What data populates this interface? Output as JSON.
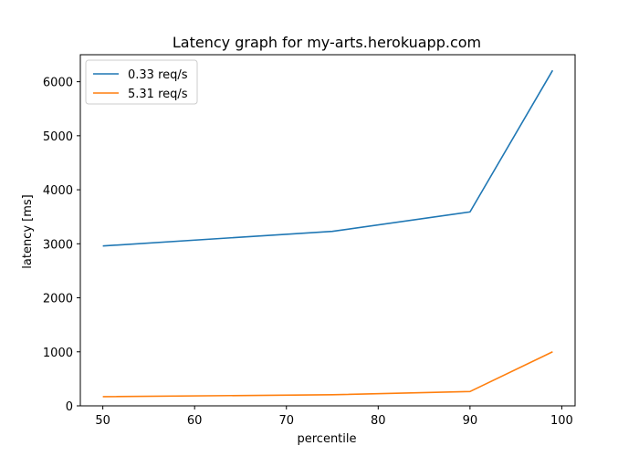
{
  "chart_data": {
    "type": "line",
    "title": "Latency graph for my-arts.herokuapp.com",
    "xlabel": "percentile",
    "ylabel": "latency [ms]",
    "x": [
      50,
      75,
      90,
      99
    ],
    "series": [
      {
        "name": "0.33 req/s",
        "color": "#1f77b4",
        "values": [
          2960,
          3230,
          3590,
          6210
        ]
      },
      {
        "name": "5.31 req/s",
        "color": "#ff7f0e",
        "values": [
          170,
          205,
          265,
          1000
        ]
      }
    ],
    "xlim": [
      47.55,
      101.45
    ],
    "ylim": [
      0,
      6500
    ],
    "xticks": [
      50,
      60,
      70,
      80,
      90,
      100
    ],
    "yticks": [
      0,
      1000,
      2000,
      3000,
      4000,
      5000,
      6000
    ],
    "grid": false,
    "legend_position": "upper-left"
  }
}
